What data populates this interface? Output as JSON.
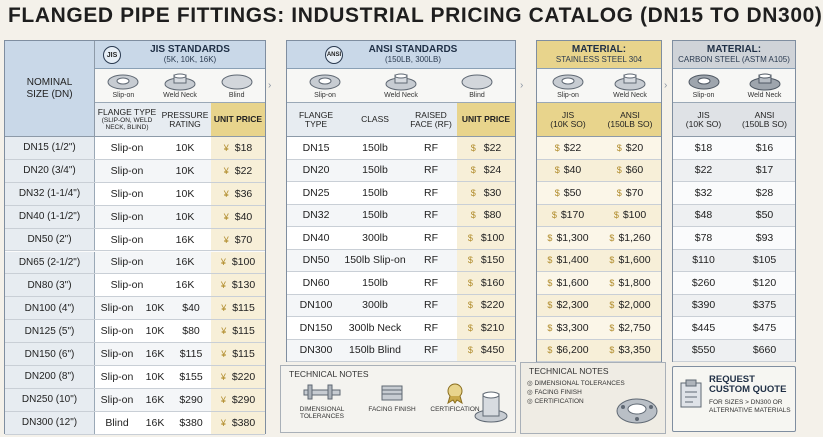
{
  "title": "FLANGED PIPE FITTINGS: INDUSTRIAL PRICING CATALOG (DN15 TO DN300)",
  "jis": {
    "badge": "JIS",
    "title": "JIS STANDARDS",
    "subtitle": "(5K, 10K, 16K)",
    "icons": [
      "Slip-on",
      "Weld Neck",
      "Blind"
    ],
    "headers": [
      "NOMINAL SIZE (DN)",
      "FLANGE TYPE",
      "(SLIP-ON, WELD NECK, BLIND)",
      "PRESSURE RATING",
      "UNIT PRICE"
    ],
    "rows": [
      {
        "size": "DN15 (1/2\")",
        "type": "Slip-on",
        "rating": "10K",
        "price": "$18"
      },
      {
        "size": "DN20 (3/4\")",
        "type": "Slip-on",
        "rating": "10K",
        "price": "$22"
      },
      {
        "size": "DN32 (1-1/4\")",
        "type": "Slip-on",
        "rating": "10K",
        "price": "$36"
      },
      {
        "size": "DN40 (1-1/2\")",
        "type": "Slip-on",
        "rating": "10K",
        "price": "$40"
      },
      {
        "size": "DN50 (2\")",
        "type": "Slip-on",
        "rating": "16K",
        "price": "$70"
      },
      {
        "size": "DN65 (2-1/2\")",
        "type": "Slip-on",
        "rating": "16K",
        "price": "$100"
      },
      {
        "size": "DN80 (3\")",
        "type": "Slip-on",
        "rating": "16K",
        "price": "$130"
      },
      {
        "size": "DN100 (4\")",
        "type": "Slip-on",
        "rating": "10K",
        "price2": "$40",
        "price": "$115"
      },
      {
        "size": "DN125 (5\")",
        "type": "Slip-on",
        "rating": "10K",
        "price2": "$80",
        "price": "$115"
      },
      {
        "size": "DN150 (6\")",
        "type": "Slip-on",
        "rating": "16K",
        "price2": "$115",
        "price": "$115"
      },
      {
        "size": "DN200 (8\")",
        "type": "Slip-on",
        "rating": "10K",
        "price2": "$155",
        "price": "$220"
      },
      {
        "size": "DN250 (10\")",
        "type": "Slip-on",
        "rating": "16K",
        "price2": "$290",
        "price": "$290"
      },
      {
        "size": "DN300 (12\")",
        "type": "Blind",
        "rating": "16K",
        "price2": "$380",
        "price": "$380"
      }
    ]
  },
  "ansi": {
    "badge": "ANSI",
    "title": "ANSI STANDARDS",
    "subtitle": "(150LB, 300LB)",
    "icons": [
      "Slip-on",
      "Weld Neck",
      "Blind"
    ],
    "headers": [
      "FLANGE TYPE",
      "CLASS",
      "RAISED FACE (RF)",
      "UNIT PRICE"
    ],
    "rows": [
      {
        "size": "DN15",
        "class": "150lb",
        "face": "RF",
        "price": "$22"
      },
      {
        "size": "DN20",
        "class": "150lb",
        "face": "RF",
        "price": "$24"
      },
      {
        "size": "DN25",
        "class": "150lb",
        "face": "RF",
        "price": "$30"
      },
      {
        "size": "DN32",
        "class": "150lb",
        "face": "RF",
        "price": "$80"
      },
      {
        "size": "DN40",
        "class": "300lb",
        "face": "RF",
        "price": "$100"
      },
      {
        "size": "DN50",
        "class": "150lb Slip-on",
        "face": "RF",
        "price": "$150"
      },
      {
        "size": "DN60",
        "class": "150lb",
        "face": "RF",
        "price": "$160"
      },
      {
        "size": "DN100",
        "class": "300lb",
        "face": "RF",
        "price": "$220"
      },
      {
        "size": "DN150",
        "class": "300lb Neck",
        "face": "RF",
        "price": "$210"
      },
      {
        "size": "DN300",
        "class": "150lb Blind",
        "face": "RF",
        "price": "$450"
      }
    ],
    "notes_title": "TECHNICAL NOTES",
    "notes": [
      "DIMENSIONAL TOLERANCES",
      "FACING FINISH",
      "CERTIFICATION"
    ]
  },
  "ss": {
    "title": "MATERIAL:",
    "subtitle": "STAINLESS STEEL 304",
    "icons": [
      "Slip-on",
      "Weld Neck"
    ],
    "headers": [
      "JIS",
      "(10K SO)",
      "ANSI",
      "(150LB SO)"
    ],
    "rows": [
      {
        "jis": "$22",
        "ansi": "$20"
      },
      {
        "jis": "$40",
        "ansi": "$60"
      },
      {
        "jis": "$50",
        "ansi": "$70"
      },
      {
        "jis": "$170",
        "ansi": "$100"
      },
      {
        "jis": "$1,300",
        "ansi": "$1,260"
      },
      {
        "jis": "$1,400",
        "ansi": "$1,600"
      },
      {
        "jis": "$1,600",
        "ansi": "$1,800"
      },
      {
        "jis": "$2,300",
        "ansi": "$2,000"
      },
      {
        "jis": "$3,300",
        "ansi": "$2,750"
      },
      {
        "jis": "$6,200",
        "ansi": "$3,350"
      }
    ],
    "notes_title": "TECHNICAL NOTES",
    "notes": [
      "DIMENSIONAL TOLERANCES",
      "FACING FINISH",
      "CERTIFICATION"
    ]
  },
  "cs": {
    "title": "MATERIAL:",
    "subtitle": "CARBON STEEL (ASTM A105)",
    "icons": [
      "Slip-on",
      "Weld Neck"
    ],
    "headers": [
      "JIS",
      "(10K SO)",
      "ANSI",
      "(150LB SO)"
    ],
    "rows": [
      {
        "jis": "$18",
        "ansi": "$16"
      },
      {
        "jis": "$22",
        "ansi": "$17"
      },
      {
        "jis": "$32",
        "ansi": "$28"
      },
      {
        "jis": "$48",
        "ansi": "$50"
      },
      {
        "jis": "$78",
        "ansi": "$93"
      },
      {
        "jis": "$110",
        "ansi": "$105"
      },
      {
        "jis": "$260",
        "ansi": "$120"
      },
      {
        "jis": "$390",
        "ansi": "$375"
      },
      {
        "jis": "$445",
        "ansi": "$475"
      },
      {
        "jis": "$550",
        "ansi": "$660"
      }
    ]
  },
  "quote": {
    "title": "REQUEST CUSTOM QUOTE",
    "subtitle": "FOR SIZES > DN300 OR ALTERNATIVE MATERIALS"
  },
  "colors": {
    "header_blue": "#c9d8e8",
    "header_gold": "#e8d48c",
    "header_gray": "#cfd3d8",
    "price_bg": "#f7efd8"
  }
}
